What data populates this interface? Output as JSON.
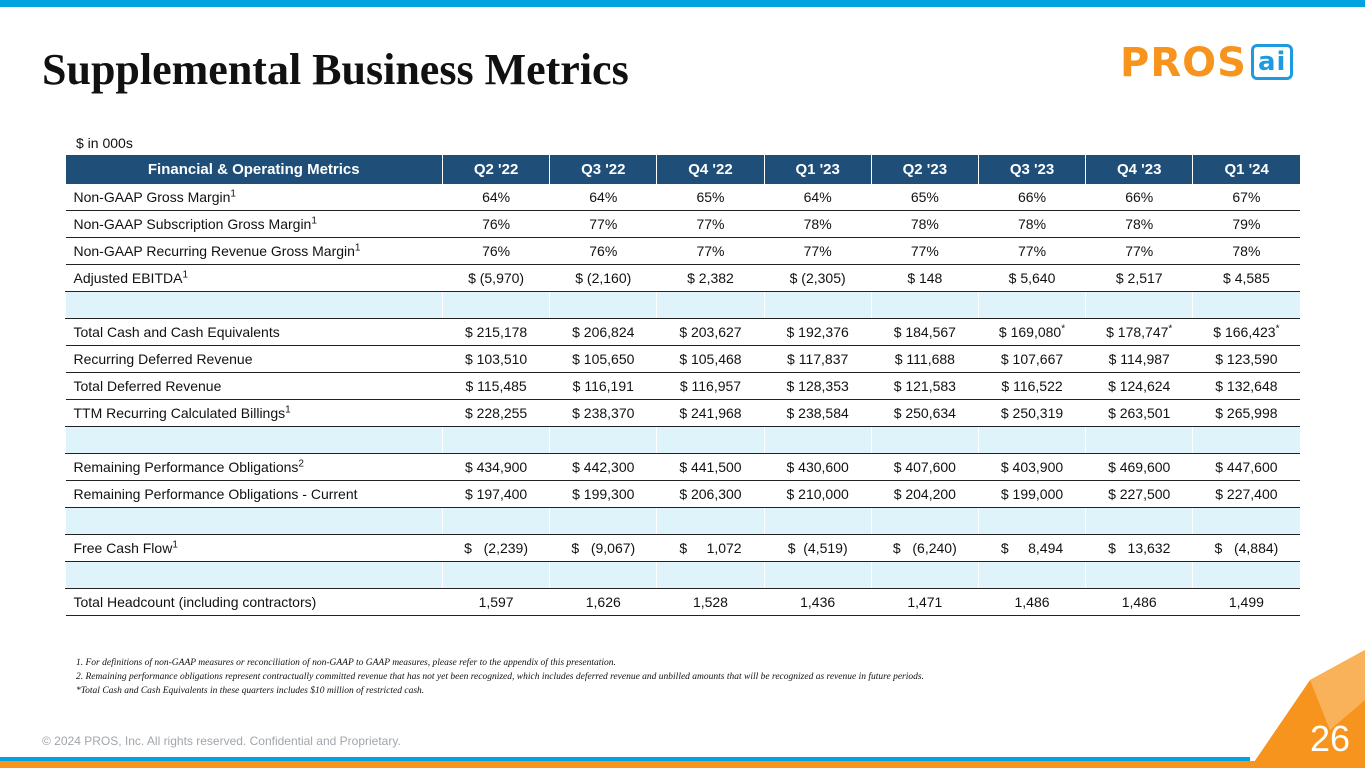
{
  "header": {
    "title": "Supplemental Business Metrics",
    "logo": {
      "main": "PROS",
      "suffix": "ai"
    }
  },
  "unit_note": "$ in 000s",
  "table": {
    "columns": [
      "Financial & Operating Metrics",
      "Q2 '22",
      "Q3 '22",
      "Q4 '22",
      "Q1 '23",
      "Q2 '23",
      "Q3 '23",
      "Q4 '23",
      "Q1 '24"
    ],
    "sections": [
      [
        {
          "label": "Non-GAAP Gross Margin",
          "note": "1",
          "values": [
            "64%",
            "64%",
            "65%",
            "64%",
            "65%",
            "66%",
            "66%",
            "67%"
          ]
        },
        {
          "label": "Non-GAAP Subscription Gross Margin",
          "note": "1",
          "values": [
            "76%",
            "77%",
            "77%",
            "78%",
            "78%",
            "78%",
            "78%",
            "79%"
          ]
        },
        {
          "label": "Non-GAAP Recurring Revenue Gross Margin",
          "note": "1",
          "values": [
            "76%",
            "76%",
            "77%",
            "77%",
            "77%",
            "77%",
            "77%",
            "78%"
          ]
        },
        {
          "label": "Adjusted EBITDA",
          "note": "1",
          "values": [
            "$ (5,970)",
            "$ (2,160)",
            "$ 2,382",
            "$ (2,305)",
            "$ 148",
            "$ 5,640",
            "$ 2,517",
            "$ 4,585"
          ]
        }
      ],
      [
        {
          "label": "Total Cash and Cash Equivalents",
          "values": [
            "$ 215,178",
            "$ 206,824",
            "$ 203,627",
            "$ 192,376",
            "$ 184,567",
            {
              "text": "$ 169,080",
              "note": "*"
            },
            {
              "text": "$ 178,747",
              "note": "*"
            },
            {
              "text": "$ 166,423",
              "note": "*"
            }
          ]
        },
        {
          "label": "Recurring Deferred Revenue",
          "values": [
            "$ 103,510",
            "$ 105,650",
            "$ 105,468",
            "$ 117,837",
            "$ 111,688",
            "$ 107,667",
            "$ 114,987",
            "$ 123,590"
          ]
        },
        {
          "label": "Total Deferred Revenue",
          "values": [
            "$ 115,485",
            "$ 116,191",
            "$ 116,957",
            "$ 128,353",
            "$ 121,583",
            "$ 116,522",
            "$ 124,624",
            "$ 132,648"
          ]
        },
        {
          "label": "TTM Recurring Calculated Billings",
          "note": "1",
          "values": [
            "$ 228,255",
            "$ 238,370",
            "$ 241,968",
            "$ 238,584",
            "$ 250,634",
            "$ 250,319",
            "$ 263,501",
            "$ 265,998"
          ]
        }
      ],
      [
        {
          "label": "Remaining Performance Obligations",
          "note": "2",
          "values": [
            "$ 434,900",
            "$ 442,300",
            "$ 441,500",
            "$ 430,600",
            "$ 407,600",
            "$ 403,900",
            "$ 469,600",
            "$ 447,600"
          ]
        },
        {
          "label": "Remaining Performance Obligations - Current",
          "values": [
            "$ 197,400",
            "$ 199,300",
            "$ 206,300",
            "$ 210,000",
            "$ 204,200",
            "$ 199,000",
            "$ 227,500",
            "$ 227,400"
          ]
        }
      ],
      [
        {
          "label": "Free Cash Flow",
          "note": "1",
          "values": [
            "$   (2,239)",
            "$   (9,067)",
            "$     1,072",
            "$  (4,519)",
            "$   (6,240)",
            "$     8,494",
            "$   13,632",
            "$   (4,884)"
          ]
        }
      ],
      [
        {
          "label": "Total Headcount (including contractors)",
          "values": [
            "1,597",
            "1,626",
            "1,528",
            "1,436",
            "1,471",
            "1,486",
            "1,486",
            "1,499"
          ]
        }
      ]
    ]
  },
  "footnotes": [
    "1. For definitions of non-GAAP measures or reconciliation of non-GAAP to GAAP measures, please refer to the appendix of this presentation.",
    "2. Remaining performance obligations represent contractually committed revenue that has not yet been recognized, which includes deferred revenue and unbilled amounts that will be recognized as revenue in future periods.",
    "*Total Cash and Cash Equivalents in these quarters includes $10 million of restricted cash."
  ],
  "footer": {
    "copyright": "© 2024 PROS, Inc. All rights reserved. Confidential and Proprietary.",
    "page_number": "26"
  }
}
